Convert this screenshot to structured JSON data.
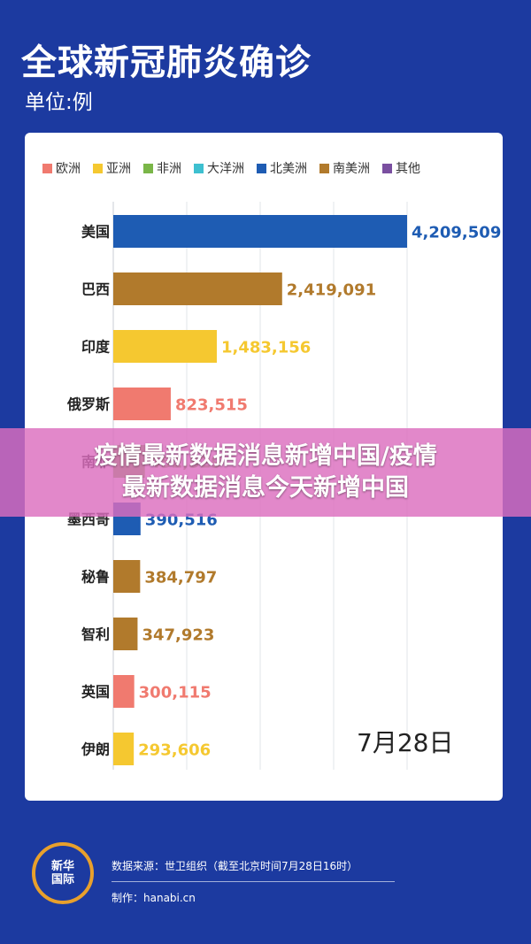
{
  "title": "全球新冠肺炎确诊",
  "unit": "单位:例",
  "legend": [
    {
      "label": "欧洲",
      "color": "#f07a6f"
    },
    {
      "label": "亚洲",
      "color": "#f5c830"
    },
    {
      "label": "非洲",
      "color": "#7ab648"
    },
    {
      "label": "大洋洲",
      "color": "#3ec0d0"
    },
    {
      "label": "北美洲",
      "color": "#1e5cb3"
    },
    {
      "label": "南美洲",
      "color": "#b17a2c"
    },
    {
      "label": "其他",
      "color": "#7a4fa0"
    }
  ],
  "chart_data": {
    "type": "bar",
    "orientation": "horizontal",
    "categories": [
      "美国",
      "巴西",
      "印度",
      "俄罗斯",
      "南非",
      "墨西哥",
      "秘鲁",
      "智利",
      "英国",
      "伊朗"
    ],
    "values": [
      4209509,
      2419091,
      1483156,
      823515,
      452529,
      390516,
      384797,
      347923,
      300115,
      293606
    ],
    "value_labels": [
      "4,209,509",
      "2,419,091",
      "1,483,156",
      "823,515",
      "452,529",
      "390,516",
      "384,797",
      "347,923",
      "300,115",
      "293,606"
    ],
    "regions": [
      "北美洲",
      "南美洲",
      "亚洲",
      "欧洲",
      "非洲",
      "北美洲",
      "南美洲",
      "南美洲",
      "欧洲",
      "亚洲"
    ],
    "colors": [
      "#1e5cb3",
      "#b17a2c",
      "#f5c830",
      "#f07a6f",
      "#7ab648",
      "#1e5cb3",
      "#b17a2c",
      "#b17a2c",
      "#f07a6f",
      "#f5c830"
    ],
    "xlim": [
      0,
      4209509
    ],
    "grid": true,
    "legend_position": "top"
  },
  "date": "7月28日",
  "banner": {
    "line1": "疫情最新数据消息新增中国/疫情",
    "line2": "最新数据消息今天新增中国"
  },
  "footer": {
    "logo_line1": "新华",
    "logo_line2": "国际",
    "source": "数据来源：世卫组织（截至北京时间7月28日16时）",
    "producer": "制作：hanabi.cn"
  }
}
